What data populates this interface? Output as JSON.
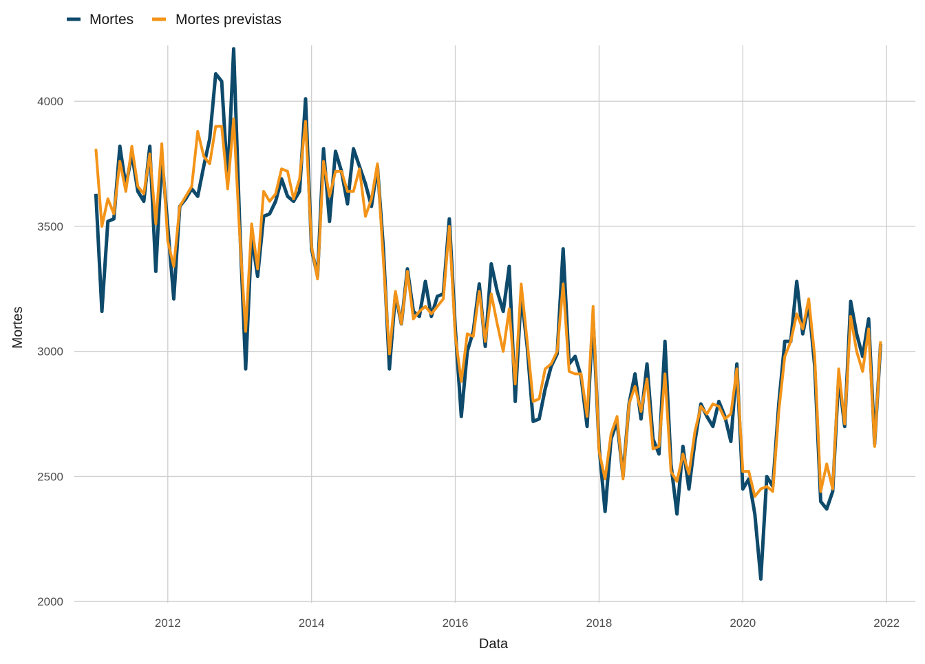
{
  "chart_data": {
    "type": "line",
    "title": "",
    "xlabel": "Data",
    "ylabel": "Mortes",
    "xlim": [
      2010.7,
      2022.4
    ],
    "ylim": [
      1995,
      4240
    ],
    "x_ticks": [
      2012,
      2014,
      2016,
      2018,
      2020,
      2022
    ],
    "x_tick_labels": [
      "2012",
      "2014",
      "2016",
      "2018",
      "2020",
      "2022"
    ],
    "y_ticks": [
      2000,
      2500,
      3000,
      3500,
      4000
    ],
    "y_tick_labels": [
      "2000",
      "2500",
      "3000",
      "3500",
      "4000"
    ],
    "grid": true,
    "legend_position": "top-left",
    "colors": {
      "mortes": "#0e4a6b",
      "previstas": "#f39419",
      "grid": "#d0d0d0",
      "axis_text": "#4d4d4d"
    },
    "x_start": 2011.0,
    "x_step": 0.083333,
    "series": [
      {
        "name": "Mortes",
        "values": [
          3630,
          3160,
          3520,
          3530,
          3820,
          3660,
          3790,
          3640,
          3600,
          3820,
          3320,
          3780,
          3500,
          3210,
          3580,
          3610,
          3650,
          3620,
          3740,
          3850,
          4110,
          4080,
          3680,
          4210,
          3510,
          2930,
          3460,
          3300,
          3540,
          3550,
          3600,
          3690,
          3620,
          3600,
          3640,
          4010,
          3410,
          3300,
          3810,
          3520,
          3800,
          3720,
          3590,
          3810,
          3740,
          3670,
          3580,
          3740,
          3410,
          2930,
          3230,
          3110,
          3330,
          3160,
          3140,
          3280,
          3140,
          3220,
          3230,
          3530,
          3090,
          2740,
          3000,
          3080,
          3270,
          3020,
          3350,
          3240,
          3160,
          3340,
          2800,
          3230,
          3020,
          2720,
          2730,
          2850,
          2940,
          2990,
          3410,
          2950,
          2980,
          2900,
          2700,
          3140,
          2620,
          2360,
          2650,
          2720,
          2500,
          2790,
          2910,
          2730,
          2950,
          2650,
          2590,
          3040,
          2550,
          2350,
          2620,
          2450,
          2640,
          2790,
          2740,
          2700,
          2800,
          2740,
          2640,
          2950,
          2450,
          2490,
          2350,
          2090,
          2500,
          2460,
          2790,
          3040,
          3040,
          3280,
          3070,
          3190,
          2940,
          2400,
          2370,
          2440,
          2900,
          2700,
          3200,
          3070,
          2980,
          3130,
          2630,
          3030
        ]
      },
      {
        "name": "Mortes previstas",
        "values": [
          3810,
          3500,
          3610,
          3550,
          3760,
          3640,
          3820,
          3660,
          3630,
          3790,
          3510,
          3830,
          3440,
          3340,
          3580,
          3620,
          3660,
          3880,
          3780,
          3750,
          3900,
          3900,
          3650,
          3930,
          3470,
          3080,
          3510,
          3330,
          3640,
          3600,
          3630,
          3730,
          3720,
          3610,
          3690,
          3920,
          3420,
          3290,
          3760,
          3620,
          3720,
          3720,
          3640,
          3640,
          3730,
          3540,
          3610,
          3750,
          3360,
          2990,
          3240,
          3110,
          3320,
          3130,
          3160,
          3180,
          3150,
          3180,
          3210,
          3500,
          3060,
          2880,
          3070,
          3060,
          3240,
          3040,
          3230,
          3110,
          3000,
          3170,
          2870,
          3270,
          3040,
          2800,
          2810,
          2930,
          2950,
          3000,
          3270,
          2920,
          2910,
          2910,
          2740,
          3180,
          2600,
          2490,
          2670,
          2740,
          2490,
          2790,
          2860,
          2760,
          2890,
          2610,
          2620,
          2910,
          2520,
          2480,
          2590,
          2510,
          2680,
          2780,
          2750,
          2790,
          2780,
          2730,
          2750,
          2930,
          2520,
          2520,
          2420,
          2450,
          2460,
          2440,
          2760,
          2980,
          3040,
          3150,
          3090,
          3210,
          2980,
          2440,
          2550,
          2450,
          2930,
          2710,
          3140,
          3000,
          2920,
          3090,
          2620,
          3040
        ]
      }
    ]
  }
}
